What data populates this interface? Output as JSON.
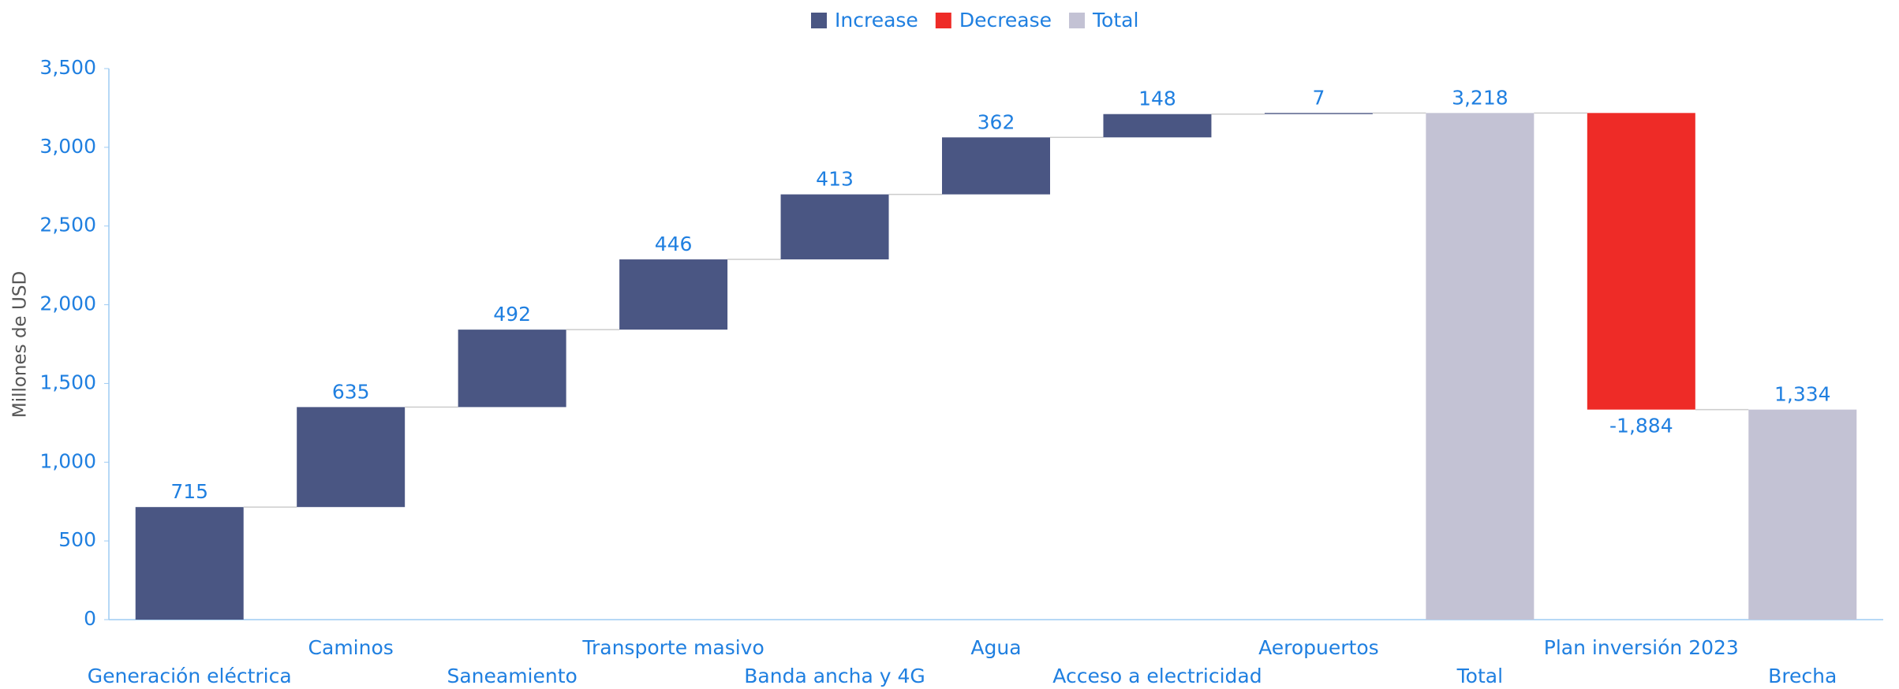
{
  "chart_data": {
    "type": "waterfall",
    "y_label": "Millones de USD",
    "categories": [
      "Generación eléctrica",
      "Caminos",
      "Saneamiento",
      "Transporte masivo",
      "Banda ancha y 4G",
      "Agua",
      "Acceso a electricidad",
      "Aeropuertos",
      "Total",
      "Plan inversión 2023",
      "Brecha"
    ],
    "values": [
      715,
      635,
      492,
      446,
      413,
      362,
      148,
      7,
      3218,
      -1884,
      1334
    ],
    "value_labels": [
      "715",
      "635",
      "492",
      "446",
      "413",
      "362",
      "148",
      "7",
      "3,218",
      "-1,884",
      "1,334"
    ],
    "measure": [
      "Increase",
      "Increase",
      "Increase",
      "Increase",
      "Increase",
      "Increase",
      "Increase",
      "Increase",
      "Total",
      "Decrease",
      "Total"
    ],
    "legend": [
      {
        "name": "Increase",
        "color": "#4a5683"
      },
      {
        "name": "Decrease",
        "color": "#ee2b27"
      },
      {
        "name": "Total",
        "color": "#c3c2d4"
      }
    ],
    "ylim": [
      0,
      3500
    ],
    "yticks": [
      0,
      500,
      {
        "value": 1000,
        "label": "1,000"
      },
      {
        "value": 1500,
        "label": "1,500"
      },
      {
        "value": 2000,
        "label": "2,000"
      },
      {
        "value": 2500,
        "label": "2,500"
      },
      {
        "value": 3000,
        "label": "3,000"
      },
      {
        "value": 3500,
        "label": "3,500"
      }
    ]
  }
}
